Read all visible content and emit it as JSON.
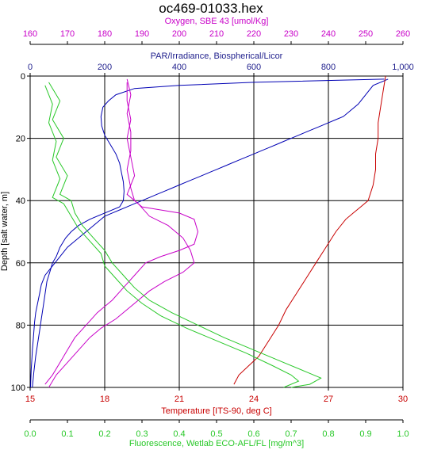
{
  "chart_data": {
    "type": "line",
    "title": "oc469-01033.hex",
    "grid": true,
    "y_axis": {
      "label": "Depth [salt water, m]",
      "range": [
        0,
        100
      ],
      "ticks": [
        "0",
        "20",
        "40",
        "60",
        "80",
        "100"
      ],
      "inverted": true
    },
    "x_axes": [
      {
        "id": "oxygen",
        "label": "Oxygen, SBE 43 [umol/Kg]",
        "color": "#c800c8",
        "position": "top-1",
        "range": [
          160,
          260
        ],
        "ticks": [
          "160",
          "170",
          "180",
          "190",
          "200",
          "210",
          "220",
          "230",
          "240",
          "250",
          "260"
        ]
      },
      {
        "id": "par",
        "label": "PAR/Irradiance, Biospherical/Licor",
        "color": "#1e1e8c",
        "position": "top-2",
        "range": [
          0,
          1000
        ],
        "ticks": [
          "0",
          "200",
          "400",
          "600",
          "800",
          "1,000"
        ]
      },
      {
        "id": "temperature",
        "label": "Temperature [ITS-90, deg C]",
        "color": "#c80000",
        "position": "bottom-1",
        "range": [
          15,
          30
        ],
        "ticks": [
          "15",
          "18",
          "21",
          "24",
          "27",
          "30"
        ]
      },
      {
        "id": "fluorescence",
        "label": "Fluorescence, Wetlab ECO-AFL/FL [mg/m^3]",
        "color": "#28c828",
        "position": "bottom-2",
        "range": [
          0,
          1
        ],
        "ticks": [
          "0.0",
          "0.1",
          "0.2",
          "0.3",
          "0.4",
          "0.5",
          "0.6",
          "0.7",
          "0.8",
          "0.9",
          "1.0"
        ]
      }
    ],
    "series": [
      {
        "axis": "par",
        "color": "#0000b4",
        "x": [
          960,
          920,
          900,
          880,
          860,
          840,
          820,
          800,
          780,
          760,
          740,
          720,
          700,
          680,
          660,
          640,
          620,
          600,
          580,
          560,
          540,
          520,
          500,
          480,
          460,
          440,
          420,
          400,
          380,
          360,
          340,
          320,
          300,
          280,
          260,
          240,
          220,
          200,
          180,
          160,
          140,
          120,
          100,
          80,
          60,
          40,
          30,
          25,
          20,
          15,
          12,
          10,
          8,
          6,
          5,
          4,
          3,
          2,
          1
        ],
        "y": [
          1,
          3,
          6,
          9,
          11,
          13,
          14,
          15,
          16,
          17,
          18,
          19,
          20,
          21,
          22,
          23,
          24,
          25,
          26,
          27,
          28,
          29,
          30,
          31,
          32,
          33,
          34,
          35,
          36,
          37,
          38,
          39,
          40,
          41,
          42,
          43,
          44,
          45,
          47,
          49,
          51,
          53,
          55,
          58,
          61,
          64,
          67,
          70,
          73,
          76,
          79,
          82,
          85,
          88,
          90,
          92,
          94,
          97,
          100
        ]
      },
      {
        "axis": "par",
        "color": "#0000b4",
        "x": [
          950,
          600,
          400,
          280,
          230,
          210,
          195,
          190,
          192,
          200,
          215,
          230,
          240,
          245,
          250,
          252,
          250,
          240,
          200,
          160,
          130,
          110,
          95,
          80,
          70,
          60,
          55,
          50,
          45,
          40,
          35,
          30,
          25,
          20,
          15,
          10,
          6
        ],
        "y": [
          1,
          2,
          3,
          4,
          6,
          8,
          10,
          13,
          16,
          19,
          22,
          25,
          28,
          31,
          34,
          37,
          40,
          42,
          44,
          46,
          48,
          50,
          52,
          55,
          58,
          60,
          62,
          64,
          66,
          70,
          74,
          78,
          82,
          86,
          90,
          95,
          100
        ]
      },
      {
        "axis": "temperature",
        "color": "#c80000",
        "x": [
          29.3,
          29.2,
          29.1,
          29.0,
          29.0,
          28.9,
          28.9,
          28.8,
          28.6,
          28.3,
          28.0,
          27.7,
          27.3,
          26.9,
          26.5,
          26.1,
          25.7,
          25.3,
          25.0,
          24.6,
          24.2,
          23.8,
          23.4,
          23.2
        ],
        "y": [
          0,
          5,
          10,
          15,
          20,
          25,
          30,
          35,
          40,
          42,
          44,
          46,
          50,
          55,
          60,
          65,
          70,
          75,
          80,
          85,
          90,
          93,
          96,
          99
        ]
      },
      {
        "axis": "oxygen",
        "color": "#c800c8",
        "x": [
          186,
          187,
          186,
          187,
          187,
          186,
          187,
          188,
          190,
          195,
          200,
          204,
          205,
          204,
          200,
          195,
          191,
          188,
          185,
          182,
          178,
          175,
          172,
          170,
          168,
          166,
          164
        ],
        "y": [
          1,
          6,
          12,
          18,
          24,
          30,
          36,
          40,
          42,
          43,
          44,
          46,
          50,
          54,
          56,
          58,
          60,
          64,
          68,
          72,
          76,
          80,
          84,
          88,
          92,
          96,
          99
        ]
      },
      {
        "axis": "oxygen",
        "color": "#c800c8",
        "x": [
          186,
          186,
          187,
          186,
          187,
          188,
          186,
          189,
          192,
          197,
          201,
          203,
          204,
          201,
          196,
          192,
          189,
          186,
          183,
          179,
          176,
          173,
          170,
          167,
          165
        ],
        "y": [
          2,
          8,
          14,
          20,
          26,
          32,
          38,
          41,
          45,
          48,
          52,
          56,
          60,
          63,
          66,
          69,
          72,
          75,
          78,
          81,
          84,
          88,
          92,
          96,
          100
        ]
      },
      {
        "axis": "fluorescence",
        "color": "#28c828",
        "x": [
          0.05,
          0.08,
          0.06,
          0.09,
          0.07,
          0.1,
          0.08,
          0.11,
          0.12,
          0.14,
          0.17,
          0.2,
          0.22,
          0.25,
          0.28,
          0.32,
          0.38,
          0.45,
          0.52,
          0.6,
          0.68,
          0.74,
          0.78,
          0.75,
          0.7
        ],
        "y": [
          2,
          8,
          14,
          20,
          26,
          32,
          38,
          40,
          44,
          48,
          52,
          56,
          60,
          64,
          68,
          72,
          76,
          80,
          84,
          88,
          92,
          95,
          97,
          99,
          100
        ]
      },
      {
        "axis": "fluorescence",
        "color": "#28c828",
        "x": [
          0.04,
          0.06,
          0.05,
          0.07,
          0.06,
          0.08,
          0.06,
          0.09,
          0.11,
          0.13,
          0.16,
          0.19,
          0.2,
          0.23,
          0.26,
          0.3,
          0.35,
          0.42,
          0.5,
          0.58,
          0.65,
          0.7,
          0.72,
          0.68
        ],
        "y": [
          3,
          9,
          15,
          21,
          27,
          33,
          39,
          41,
          45,
          49,
          53,
          57,
          61,
          65,
          69,
          73,
          77,
          81,
          85,
          89,
          93,
          96,
          98,
          100
        ]
      }
    ]
  }
}
